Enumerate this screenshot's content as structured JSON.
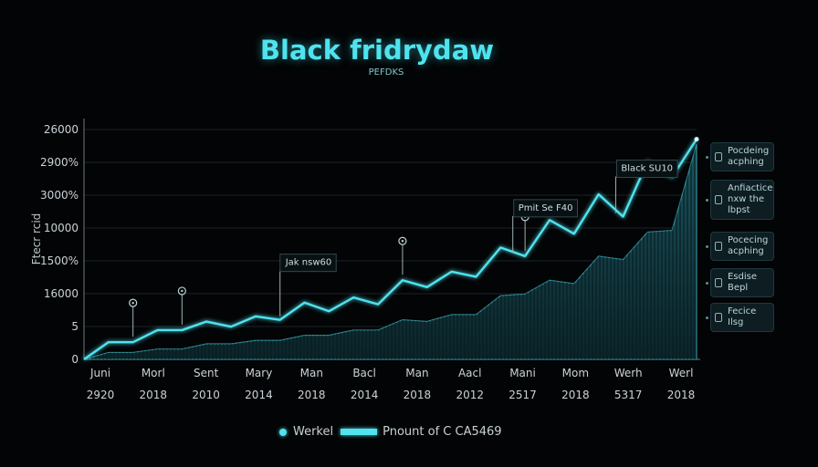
{
  "chart_data": {
    "type": "line",
    "title": "Black fridrydaw",
    "subtitle": "PEFDKS",
    "ylabel": "Ftecr rcid",
    "y_tick_labels": [
      "26000",
      "2900%",
      "3000%",
      "10000",
      "1500%",
      "16000",
      "5",
      "0"
    ],
    "x_labels_top": [
      "Juni",
      "Morl",
      "Sent",
      "Mary",
      "Man",
      "Bacl",
      "Man",
      "Aacl",
      "Mani",
      "Mom",
      "Werh",
      "Werl"
    ],
    "x_labels_bottom": [
      "2920",
      "2018",
      "2010",
      "2014",
      "2018",
      "2014",
      "2018",
      "2012",
      "2517",
      "2018",
      "5317",
      "2018"
    ],
    "series": [
      {
        "name": "Werkel",
        "values": [
          0,
          10,
          10,
          17,
          17,
          22,
          19,
          25,
          23,
          33,
          28,
          36,
          32,
          46,
          42,
          51,
          48,
          65,
          60,
          81,
          73,
          96,
          83,
          115,
          106,
          128
        ]
      },
      {
        "name": "Pnount of C CA5469",
        "values": [
          0,
          4,
          4,
          6,
          6,
          9,
          9,
          11,
          11,
          14,
          14,
          17,
          17,
          23,
          22,
          26,
          26,
          37,
          38,
          46,
          44,
          60,
          58,
          74,
          75,
          125
        ]
      }
    ],
    "y_range": [
      0,
      140
    ],
    "grid": true,
    "legend": "bottom-center",
    "colors": {
      "line": "#4fe3ee",
      "area": "#16434b",
      "grid": "#1a2226"
    },
    "annotations": [
      {
        "text": "Black SU10",
        "x_index": 21.7
      },
      {
        "text": "Pmit Se F40",
        "x_index": 17.5
      },
      {
        "text": "Jak nsw60",
        "x_index": 8
      }
    ],
    "marker_indices": [
      2,
      4,
      13,
      18
    ]
  },
  "side_panel": [
    {
      "text": "Pocdeing acphing",
      "icon": "document-icon"
    },
    {
      "text": "Anfiactice nxw the lbpst",
      "icon": "document-icon"
    },
    {
      "text": "Pocecing acphing",
      "icon": "document-icon"
    },
    {
      "text": "Esdise Bepl",
      "icon": "document-icon"
    },
    {
      "text": "Fecice Ilsg",
      "icon": "document-icon"
    }
  ]
}
